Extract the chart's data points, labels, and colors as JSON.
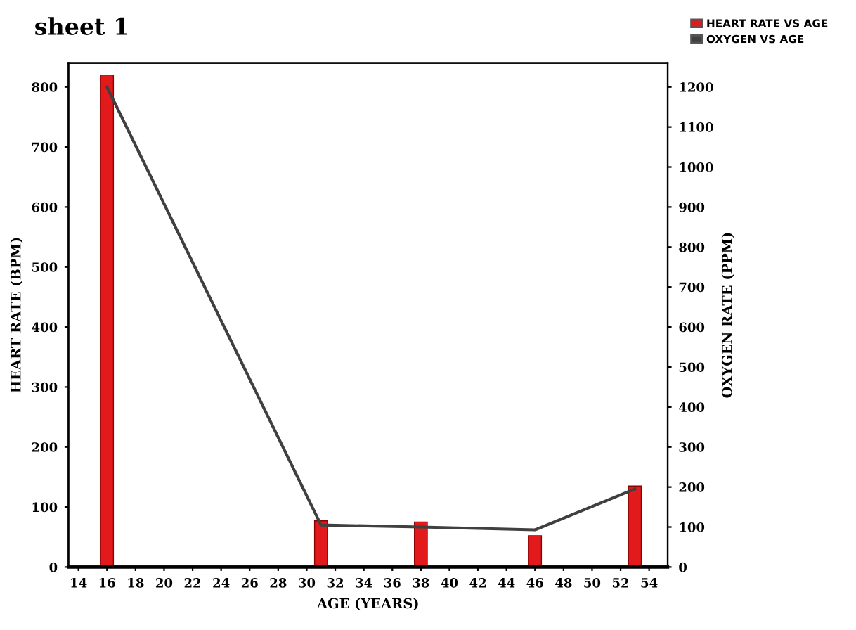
{
  "chart_data": {
    "type": "bar",
    "title": "sheet 1",
    "xlabel": "AGE (YEARS)",
    "ylabel": "HEART RATE (BPM)",
    "y2label": "OXYGEN RATE (PPM)",
    "x": [
      16,
      31,
      38,
      46,
      53
    ],
    "series": [
      {
        "name": "HEART RATE VS AGE",
        "color": "#e31a1c",
        "values": [
          820,
          77,
          75,
          52,
          135
        ]
      },
      {
        "name": "OXYGEN VS AGE",
        "type": "line",
        "axis": "y2",
        "color": "#404040",
        "values": [
          1200,
          105,
          100,
          93,
          195
        ]
      }
    ],
    "xlim": [
      13.3,
      55.3
    ],
    "xticks": [
      14,
      16,
      18,
      20,
      22,
      24,
      26,
      28,
      30,
      32,
      34,
      36,
      38,
      40,
      42,
      44,
      46,
      48,
      50,
      52,
      54
    ],
    "ylim": [
      0,
      840
    ],
    "yticks": [
      0,
      100,
      200,
      300,
      400,
      500,
      600,
      700,
      800
    ],
    "y2lim": [
      0,
      1260
    ],
    "y2ticks": [
      0,
      100,
      200,
      300,
      400,
      500,
      600,
      700,
      800,
      900,
      1000,
      1100,
      1200
    ],
    "grid": false,
    "legend": "top right",
    "marker": "none",
    "line_style": "solid"
  }
}
